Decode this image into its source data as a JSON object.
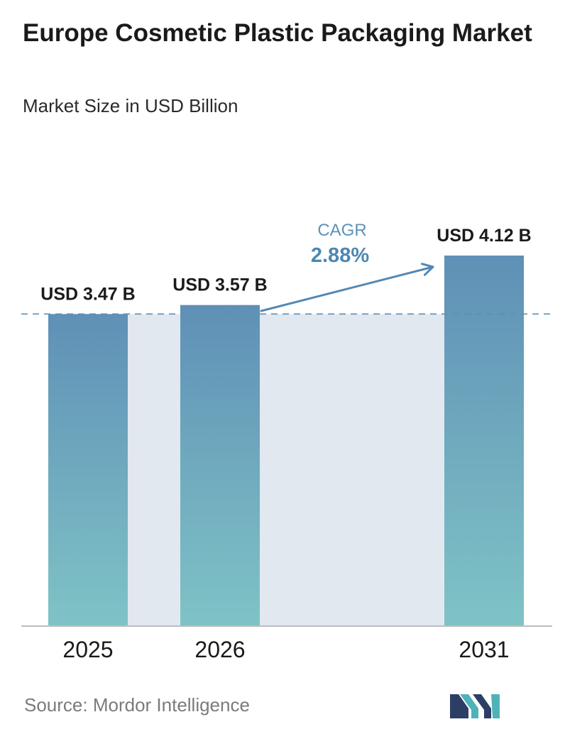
{
  "header": {
    "title": "Europe Cosmetic Plastic Packaging Market",
    "subtitle": "Market Size in USD Billion"
  },
  "chart_data": {
    "type": "bar",
    "categories": [
      "2025",
      "2026",
      "2031"
    ],
    "values": [
      3.47,
      3.57,
      4.12
    ],
    "value_labels": [
      "USD 3.47 B",
      "USD 3.57 B",
      "USD 4.12 B"
    ],
    "ylim": [
      0,
      4.12
    ],
    "grid": false,
    "reference_line": 3.47,
    "annotation": {
      "label": "CAGR",
      "value": "2.88%"
    },
    "colors": {
      "bar_top": "#5f90b6",
      "bar_bottom": "#7fc3c6",
      "band": "#e1e8f0",
      "reference_line": "#5d8fb5",
      "cagr_label": "#5c93b8",
      "cagr_value": "#4d87b2",
      "arrow": "#5388b3",
      "axis": "#bdbdbd"
    }
  },
  "footer": {
    "source": "Source:  Mordor Intelligence"
  },
  "logo": {
    "colors": [
      "#2c3e66",
      "#4fb2b9"
    ]
  }
}
